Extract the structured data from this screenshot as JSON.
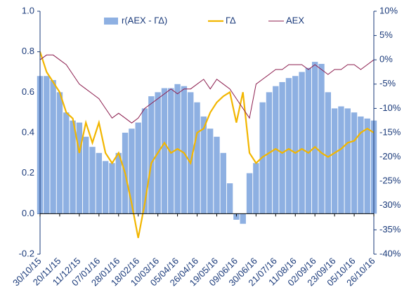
{
  "chart_data": {
    "type": "bar-line",
    "categories": [
      "30/10/15",
      null,
      null,
      "20/11/15",
      null,
      null,
      "11/12/15",
      null,
      null,
      "07/01/16",
      null,
      null,
      "28/01/16",
      null,
      null,
      "18/02/16",
      null,
      null,
      "10/03/16",
      null,
      null,
      "05/04/16",
      null,
      null,
      "26/04/16",
      null,
      null,
      "19/05/16",
      null,
      null,
      "09/06/16",
      null,
      null,
      "30/06/16",
      null,
      null,
      "21/07/16",
      null,
      null,
      "11/08/16",
      null,
      null,
      "02/09/16",
      null,
      null,
      "23/09/16",
      null,
      null,
      "05/10/16",
      null,
      null,
      "26/10/16"
    ],
    "series": [
      {
        "name": "r(AEX - ΓΔ)",
        "kind": "bar",
        "color": "#8eb0e2",
        "values": [
          0.68,
          0.68,
          0.66,
          0.6,
          0.5,
          0.46,
          0.45,
          0.38,
          0.33,
          0.3,
          0.26,
          0.25,
          0.3,
          0.4,
          0.42,
          0.45,
          0.52,
          0.58,
          0.6,
          0.62,
          0.62,
          0.64,
          0.63,
          0.6,
          0.55,
          0.48,
          0.42,
          0.38,
          0.3,
          0.15,
          -0.03,
          -0.05,
          0.2,
          0.25,
          0.55,
          0.6,
          0.63,
          0.65,
          0.67,
          0.68,
          0.7,
          0.72,
          0.75,
          0.74,
          0.6,
          0.52,
          0.53,
          0.52,
          0.5,
          0.48,
          0.47,
          0.46
        ]
      },
      {
        "name": "ΓΔ",
        "kind": "line",
        "color": "#f2b600",
        "values": [
          0.8,
          0.7,
          0.65,
          0.6,
          0.5,
          0.47,
          0.3,
          0.45,
          0.35,
          0.45,
          0.3,
          0.25,
          0.3,
          0.2,
          0.05,
          -0.12,
          0.05,
          0.25,
          0.3,
          0.35,
          0.3,
          0.32,
          0.3,
          0.25,
          0.4,
          0.42,
          0.5,
          0.55,
          0.58,
          0.6,
          0.45,
          0.6,
          0.3,
          0.25,
          0.28,
          0.3,
          0.32,
          0.3,
          0.32,
          0.3,
          0.32,
          0.3,
          0.33,
          0.3,
          0.28,
          0.3,
          0.32,
          0.35,
          0.36,
          0.4,
          0.42,
          0.4
        ]
      },
      {
        "name": "AEX",
        "kind": "line",
        "axis": "y2",
        "color": "#8c1d4e",
        "values": [
          0,
          1,
          1,
          0,
          -1,
          -3,
          -5,
          -6,
          -7,
          -8,
          -10,
          -12,
          -11,
          -12,
          -13,
          -12,
          -10,
          -9,
          -8,
          -7,
          -6,
          -7,
          -6,
          -6,
          -5,
          -4,
          -6,
          -4,
          -5,
          -6,
          -8,
          -10,
          -12,
          -5,
          -4,
          -3,
          -2,
          -2,
          -1,
          -1,
          -1,
          -2,
          -1,
          -2,
          -3,
          -2,
          -2,
          -1,
          -1,
          -2,
          -1,
          0
        ]
      }
    ],
    "ylim": [
      -0.2,
      1.0
    ],
    "yticks": [
      {
        "value": 1.0,
        "label": "1.0"
      },
      0.8,
      0.6,
      0.4,
      0.2,
      {
        "value": 0.0,
        "label": "0.0"
      },
      -0.2
    ],
    "y2lim": [
      -40,
      10
    ],
    "y2ticks": [
      {
        "value": 10,
        "label": "10%"
      },
      {
        "value": 5,
        "label": "5%"
      },
      {
        "value": 0,
        "label": "0%"
      },
      {
        "value": -5,
        "label": "-5%"
      },
      {
        "value": -10,
        "label": "-10%"
      },
      {
        "value": -15,
        "label": "-15%"
      },
      {
        "value": -20,
        "label": "-20%"
      },
      {
        "value": -25,
        "label": "-25%"
      },
      {
        "value": -30,
        "label": "-30%"
      },
      {
        "value": -35,
        "label": "-35%"
      },
      {
        "value": -40,
        "label": "-40%"
      }
    ],
    "legend": "top"
  }
}
